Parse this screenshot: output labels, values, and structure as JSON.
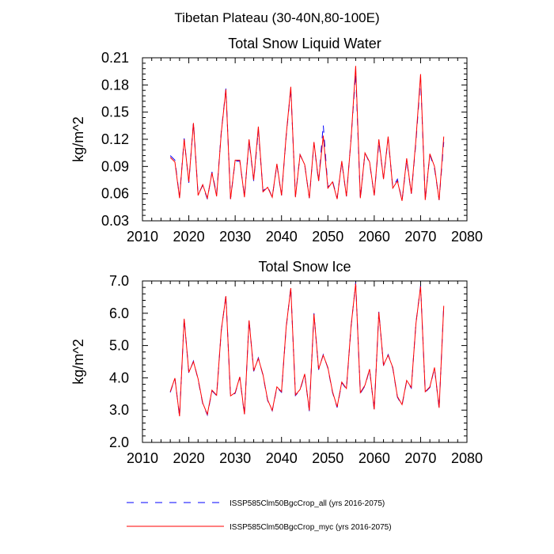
{
  "figure_title": "Tibetan Plateau (30-40N,80-100E)",
  "colors": {
    "series_all": "#0000ff",
    "series_myc": "#ff0000",
    "axis": "#000000"
  },
  "legend": [
    {
      "label": "ISSP585Clm50BgcCrop_all (yrs 2016-2075)",
      "style": "dashed",
      "color": "#0000ff"
    },
    {
      "label": "ISSP585Clm50BgcCrop_myc (yrs 2016-2075)",
      "style": "solid",
      "color": "#ff0000"
    }
  ],
  "chart_data": [
    {
      "type": "line",
      "title": "Total Snow Liquid Water",
      "xlabel": "",
      "ylabel": "kg/m^2",
      "xlim": [
        2010,
        2080
      ],
      "ylim": [
        0.03,
        0.21
      ],
      "xticks": [
        2010,
        2020,
        2030,
        2040,
        2050,
        2060,
        2070,
        2080
      ],
      "yticks": [
        0.03,
        0.06,
        0.09,
        0.12,
        0.15,
        0.18,
        0.21
      ],
      "ytick_labels": [
        "0.03",
        "0.06",
        "0.09",
        "0.12",
        "0.15",
        "0.18",
        "0.21"
      ],
      "x": [
        2016,
        2017,
        2018,
        2019,
        2020,
        2021,
        2022,
        2023,
        2024,
        2025,
        2026,
        2027,
        2028,
        2029,
        2030,
        2031,
        2032,
        2033,
        2034,
        2035,
        2036,
        2037,
        2038,
        2039,
        2040,
        2041,
        2042,
        2043,
        2044,
        2045,
        2046,
        2047,
        2048,
        2049,
        2050,
        2051,
        2052,
        2053,
        2054,
        2055,
        2056,
        2057,
        2058,
        2059,
        2060,
        2061,
        2062,
        2063,
        2064,
        2065,
        2066,
        2067,
        2068,
        2069,
        2070,
        2071,
        2072,
        2073,
        2074,
        2075
      ],
      "series": [
        {
          "name": "ISSP585Clm50BgcCrop_all (yrs 2016-2075)",
          "values": [
            0.102,
            0.097,
            0.056,
            0.121,
            0.072,
            0.139,
            0.059,
            0.069,
            0.054,
            0.084,
            0.059,
            0.128,
            0.176,
            0.054,
            0.096,
            0.096,
            0.057,
            0.118,
            0.074,
            0.13,
            0.063,
            0.068,
            0.056,
            0.092,
            0.058,
            0.123,
            0.176,
            0.057,
            0.103,
            0.092,
            0.055,
            0.116,
            0.073,
            0.136,
            0.067,
            0.074,
            0.055,
            0.095,
            0.057,
            0.121,
            0.193,
            0.054,
            0.105,
            0.094,
            0.058,
            0.117,
            0.077,
            0.121,
            0.067,
            0.076,
            0.052,
            0.097,
            0.06,
            0.117,
            0.188,
            0.053,
            0.103,
            0.088,
            0.053,
            0.117
          ]
        },
        {
          "name": "ISSP585Clm50BgcCrop_myc (yrs 2016-2075)",
          "values": [
            0.1,
            0.095,
            0.055,
            0.12,
            0.073,
            0.138,
            0.058,
            0.07,
            0.055,
            0.083,
            0.057,
            0.127,
            0.175,
            0.054,
            0.097,
            0.097,
            0.056,
            0.12,
            0.075,
            0.134,
            0.062,
            0.067,
            0.056,
            0.093,
            0.058,
            0.124,
            0.178,
            0.056,
            0.103,
            0.092,
            0.055,
            0.117,
            0.074,
            0.124,
            0.066,
            0.073,
            0.054,
            0.096,
            0.057,
            0.12,
            0.201,
            0.055,
            0.105,
            0.095,
            0.058,
            0.12,
            0.076,
            0.123,
            0.066,
            0.074,
            0.052,
            0.099,
            0.06,
            0.12,
            0.192,
            0.053,
            0.104,
            0.09,
            0.053,
            0.123
          ]
        }
      ]
    },
    {
      "type": "line",
      "title": "Total Snow Ice",
      "xlabel": "",
      "ylabel": "kg/m^2",
      "xlim": [
        2010,
        2080
      ],
      "ylim": [
        2.0,
        7.0
      ],
      "xticks": [
        2010,
        2020,
        2030,
        2040,
        2050,
        2060,
        2070,
        2080
      ],
      "yticks": [
        2.0,
        3.0,
        4.0,
        5.0,
        6.0,
        7.0
      ],
      "ytick_labels": [
        "2.0",
        "3.0",
        "4.0",
        "5.0",
        "6.0",
        "7.0"
      ],
      "x": [
        2016,
        2017,
        2018,
        2019,
        2020,
        2021,
        2022,
        2023,
        2024,
        2025,
        2026,
        2027,
        2028,
        2029,
        2030,
        2031,
        2032,
        2033,
        2034,
        2035,
        2036,
        2037,
        2038,
        2039,
        2040,
        2041,
        2042,
        2043,
        2044,
        2045,
        2046,
        2047,
        2048,
        2049,
        2050,
        2051,
        2052,
        2053,
        2054,
        2055,
        2056,
        2057,
        2058,
        2059,
        2060,
        2061,
        2062,
        2063,
        2064,
        2065,
        2066,
        2067,
        2068,
        2069,
        2070,
        2071,
        2072,
        2073,
        2074,
        2075
      ],
      "series": [
        {
          "name": "ISSP585Clm50BgcCrop_all (yrs 2016-2075)",
          "values": [
            3.55,
            3.98,
            2.8,
            5.85,
            4.15,
            4.52,
            3.95,
            3.2,
            2.85,
            3.6,
            3.45,
            5.45,
            6.55,
            3.42,
            3.52,
            4.02,
            2.85,
            5.8,
            4.2,
            4.62,
            4.08,
            3.3,
            2.98,
            3.7,
            3.55,
            5.55,
            6.8,
            3.45,
            3.62,
            4.1,
            2.97,
            6.0,
            4.25,
            4.72,
            4.3,
            3.55,
            3.08,
            3.85,
            3.65,
            5.58,
            6.95,
            3.52,
            3.75,
            4.25,
            3.0,
            6.05,
            4.38,
            4.72,
            4.3,
            3.4,
            3.15,
            3.9,
            3.68,
            5.7,
            6.85,
            3.55,
            3.7,
            4.3,
            3.05,
            6.25
          ]
        },
        {
          "name": "ISSP585Clm50BgcCrop_myc (yrs 2016-2075)",
          "values": [
            3.57,
            3.99,
            2.81,
            5.83,
            4.17,
            4.5,
            3.97,
            3.22,
            2.87,
            3.62,
            3.46,
            5.47,
            6.53,
            3.44,
            3.54,
            4.03,
            2.87,
            5.78,
            4.22,
            4.6,
            4.1,
            3.32,
            2.99,
            3.72,
            3.57,
            5.57,
            6.78,
            3.47,
            3.64,
            4.12,
            2.99,
            5.98,
            4.27,
            4.7,
            4.32,
            3.57,
            3.1,
            3.87,
            3.67,
            5.6,
            6.92,
            3.54,
            3.77,
            4.27,
            3.02,
            6.03,
            4.4,
            4.7,
            4.32,
            3.42,
            3.17,
            3.92,
            3.7,
            5.68,
            6.83,
            3.57,
            3.72,
            4.32,
            3.07,
            6.23
          ]
        }
      ]
    }
  ]
}
